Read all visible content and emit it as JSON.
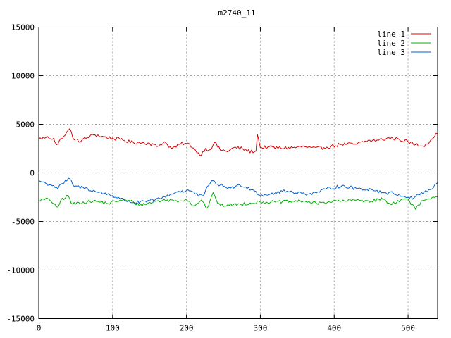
{
  "chart_data": {
    "type": "line",
    "title": "m2740_11",
    "xlabel": "",
    "ylabel": "",
    "xlim": [
      0,
      540
    ],
    "ylim": [
      -15000,
      15000
    ],
    "x_ticks": [
      0,
      100,
      200,
      300,
      400,
      500
    ],
    "y_ticks": [
      -15000,
      -10000,
      -5000,
      0,
      5000,
      10000,
      15000
    ],
    "grid": true,
    "legend_position": "top-right",
    "series": [
      {
        "name": "line 1",
        "color": "#e00000",
        "keypoints": [
          [
            0,
            3500
          ],
          [
            10,
            3650
          ],
          [
            20,
            3550
          ],
          [
            25,
            2750
          ],
          [
            30,
            3550
          ],
          [
            36,
            3900
          ],
          [
            42,
            4550
          ],
          [
            48,
            3400
          ],
          [
            55,
            3250
          ],
          [
            65,
            3600
          ],
          [
            75,
            3950
          ],
          [
            85,
            3750
          ],
          [
            95,
            3600
          ],
          [
            110,
            3450
          ],
          [
            125,
            3150
          ],
          [
            140,
            3100
          ],
          [
            150,
            3050
          ],
          [
            160,
            2700
          ],
          [
            170,
            3200
          ],
          [
            180,
            2500
          ],
          [
            195,
            3050
          ],
          [
            205,
            2900
          ],
          [
            212,
            2350
          ],
          [
            218,
            1800
          ],
          [
            225,
            2450
          ],
          [
            232,
            2400
          ],
          [
            238,
            3150
          ],
          [
            245,
            2400
          ],
          [
            255,
            2200
          ],
          [
            265,
            2600
          ],
          [
            275,
            2500
          ],
          [
            285,
            2200
          ],
          [
            294,
            2250
          ],
          [
            296,
            3950
          ],
          [
            300,
            2600
          ],
          [
            310,
            2650
          ],
          [
            325,
            2550
          ],
          [
            345,
            2600
          ],
          [
            360,
            2700
          ],
          [
            375,
            2500
          ],
          [
            390,
            2650
          ],
          [
            410,
            2950
          ],
          [
            430,
            2950
          ],
          [
            445,
            3300
          ],
          [
            460,
            3350
          ],
          [
            475,
            3600
          ],
          [
            488,
            3450
          ],
          [
            500,
            3200
          ],
          [
            510,
            2900
          ],
          [
            520,
            2750
          ],
          [
            530,
            3300
          ],
          [
            535,
            3800
          ],
          [
            540,
            4000
          ]
        ],
        "noise": 180
      },
      {
        "name": "line 2",
        "color": "#00b000",
        "keypoints": [
          [
            0,
            -2800
          ],
          [
            15,
            -2700
          ],
          [
            25,
            -3700
          ],
          [
            30,
            -2800
          ],
          [
            40,
            -2350
          ],
          [
            45,
            -3250
          ],
          [
            55,
            -3050
          ],
          [
            75,
            -2900
          ],
          [
            95,
            -3150
          ],
          [
            110,
            -2800
          ],
          [
            125,
            -2900
          ],
          [
            135,
            -3300
          ],
          [
            145,
            -3200
          ],
          [
            160,
            -2900
          ],
          [
            175,
            -2800
          ],
          [
            190,
            -2900
          ],
          [
            200,
            -2700
          ],
          [
            210,
            -3400
          ],
          [
            220,
            -2800
          ],
          [
            228,
            -3650
          ],
          [
            233,
            -2700
          ],
          [
            237,
            -2000
          ],
          [
            243,
            -3300
          ],
          [
            255,
            -3350
          ],
          [
            275,
            -3200
          ],
          [
            300,
            -3000
          ],
          [
            320,
            -3000
          ],
          [
            340,
            -2950
          ],
          [
            360,
            -2900
          ],
          [
            375,
            -3150
          ],
          [
            395,
            -2950
          ],
          [
            410,
            -2900
          ],
          [
            430,
            -2800
          ],
          [
            450,
            -2900
          ],
          [
            465,
            -2650
          ],
          [
            475,
            -3200
          ],
          [
            490,
            -2800
          ],
          [
            500,
            -2700
          ],
          [
            510,
            -3750
          ],
          [
            520,
            -2850
          ],
          [
            530,
            -2700
          ],
          [
            540,
            -2500
          ]
        ],
        "noise": 160
      },
      {
        "name": "line 3",
        "color": "#0060d0",
        "keypoints": [
          [
            0,
            -800
          ],
          [
            10,
            -1100
          ],
          [
            20,
            -1300
          ],
          [
            25,
            -1650
          ],
          [
            32,
            -1100
          ],
          [
            42,
            -600
          ],
          [
            48,
            -1400
          ],
          [
            60,
            -1500
          ],
          [
            80,
            -2000
          ],
          [
            95,
            -2200
          ],
          [
            110,
            -2650
          ],
          [
            125,
            -3000
          ],
          [
            135,
            -3050
          ],
          [
            150,
            -2900
          ],
          [
            165,
            -2650
          ],
          [
            175,
            -2300
          ],
          [
            190,
            -1900
          ],
          [
            205,
            -1800
          ],
          [
            215,
            -2300
          ],
          [
            222,
            -2400
          ],
          [
            230,
            -1300
          ],
          [
            236,
            -800
          ],
          [
            245,
            -1300
          ],
          [
            260,
            -1550
          ],
          [
            275,
            -1250
          ],
          [
            290,
            -1750
          ],
          [
            300,
            -2300
          ],
          [
            315,
            -2150
          ],
          [
            330,
            -1900
          ],
          [
            345,
            -1950
          ],
          [
            360,
            -2150
          ],
          [
            375,
            -2050
          ],
          [
            395,
            -1550
          ],
          [
            410,
            -1350
          ],
          [
            430,
            -1600
          ],
          [
            450,
            -1700
          ],
          [
            465,
            -2000
          ],
          [
            480,
            -2100
          ],
          [
            495,
            -2400
          ],
          [
            505,
            -2600
          ],
          [
            515,
            -2200
          ],
          [
            525,
            -1900
          ],
          [
            535,
            -1500
          ],
          [
            540,
            -1000
          ]
        ],
        "noise": 170
      }
    ]
  }
}
